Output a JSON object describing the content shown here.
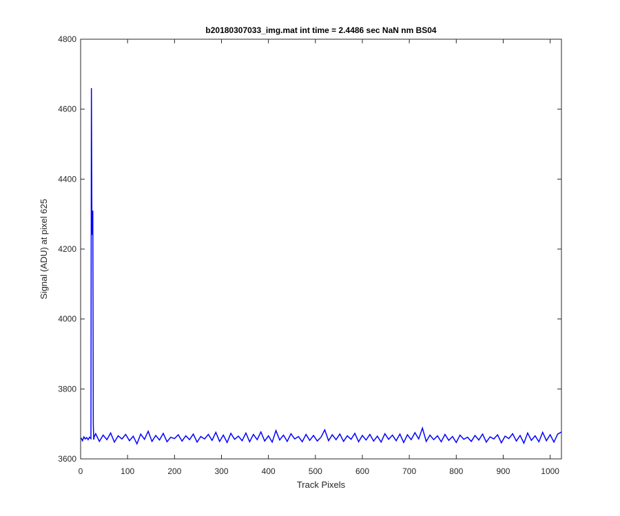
{
  "chart_data": {
    "type": "line",
    "title": "b20180307033_img.mat int time = 2.4486 sec  NaN nm BS04",
    "x_label": "Track Pixels",
    "y_label": "Signal (ADU) at pixel 625",
    "color": "#0000ff",
    "x": [
      1,
      4,
      7,
      10,
      13,
      16,
      19,
      22,
      23,
      24,
      25,
      26,
      27,
      28,
      29,
      32,
      40,
      48,
      56,
      64,
      72,
      80,
      88,
      96,
      104,
      112,
      120,
      128,
      136,
      144,
      152,
      160,
      168,
      176,
      184,
      192,
      200,
      208,
      216,
      224,
      232,
      240,
      248,
      256,
      264,
      272,
      280,
      288,
      296,
      304,
      312,
      320,
      328,
      336,
      344,
      352,
      360,
      368,
      376,
      384,
      392,
      400,
      408,
      416,
      424,
      432,
      440,
      448,
      456,
      464,
      472,
      480,
      488,
      496,
      504,
      512,
      520,
      528,
      536,
      544,
      552,
      560,
      568,
      576,
      584,
      592,
      600,
      608,
      616,
      624,
      632,
      640,
      648,
      656,
      664,
      672,
      680,
      688,
      696,
      704,
      712,
      720,
      728,
      736,
      744,
      752,
      760,
      768,
      776,
      784,
      792,
      800,
      808,
      816,
      824,
      832,
      840,
      848,
      856,
      864,
      872,
      880,
      888,
      896,
      904,
      912,
      920,
      928,
      936,
      944,
      952,
      960,
      968,
      976,
      984,
      992,
      1000,
      1008,
      1016,
      1024
    ],
    "values": [
      3660,
      3652,
      3663,
      3657,
      3661,
      3655,
      3662,
      3658,
      4660,
      4300,
      4240,
      4310,
      3700,
      3655,
      3663,
      3672,
      3650,
      3668,
      3655,
      3674,
      3648,
      3666,
      3657,
      3670,
      3652,
      3665,
      3643,
      3671,
      3656,
      3679,
      3650,
      3667,
      3654,
      3673,
      3649,
      3662,
      3658,
      3669,
      3651,
      3666,
      3655,
      3671,
      3648,
      3664,
      3657,
      3670,
      3653,
      3676,
      3650,
      3668,
      3647,
      3673,
      3656,
      3665,
      3652,
      3674,
      3649,
      3670,
      3655,
      3677,
      3651,
      3666,
      3648,
      3681,
      3654,
      3668,
      3650,
      3672,
      3657,
      3664,
      3649,
      3670,
      3653,
      3667,
      3651,
      3662,
      3683,
      3652,
      3669,
      3655,
      3671,
      3650,
      3666,
      3656,
      3673,
      3649,
      3667,
      3654,
      3670,
      3651,
      3665,
      3648,
      3672,
      3656,
      3668,
      3652,
      3671,
      3647,
      3669,
      3655,
      3675,
      3657,
      3688,
      3650,
      3668,
      3655,
      3666,
      3649,
      3670,
      3653,
      3664,
      3647,
      3668,
      3656,
      3662,
      3650,
      3667,
      3654,
      3671,
      3648,
      3663,
      3657,
      3669,
      3646,
      3665,
      3658,
      3672,
      3651,
      3667,
      3645,
      3674,
      3653,
      3666,
      3649,
      3676,
      3652,
      3669,
      3648,
      3671,
      3677
    ],
    "xlim": [
      0,
      1024
    ],
    "xticks": [
      0,
      100,
      200,
      300,
      400,
      500,
      600,
      700,
      800,
      900,
      1000
    ],
    "ylim": [
      3600,
      4800
    ],
    "yticks": [
      3600,
      3800,
      4000,
      4200,
      4400,
      4600,
      4800
    ]
  }
}
